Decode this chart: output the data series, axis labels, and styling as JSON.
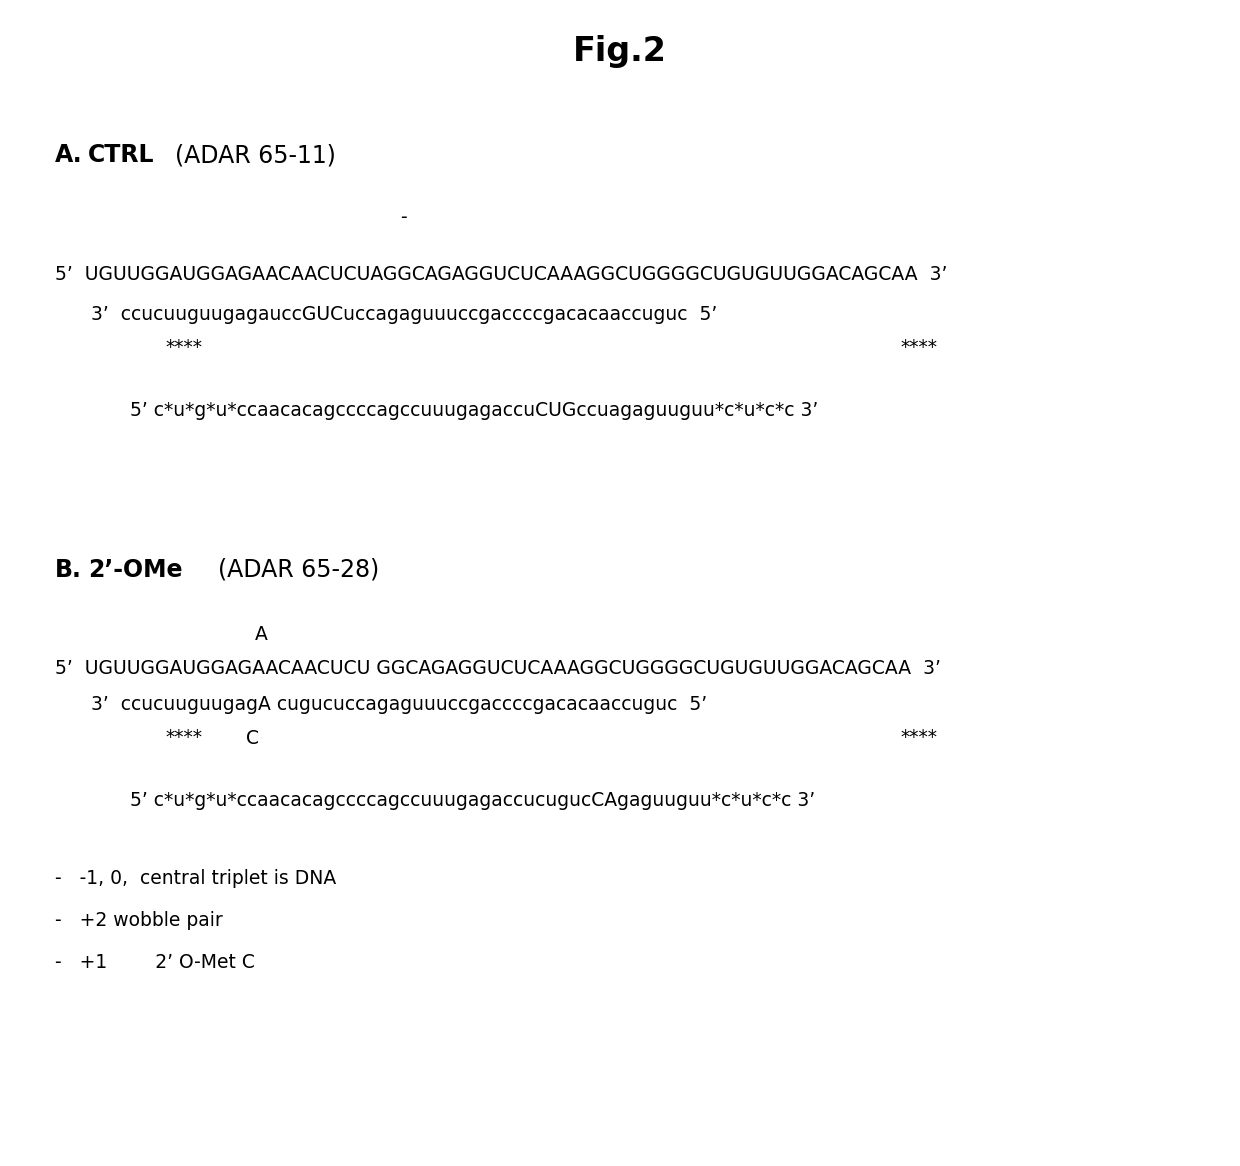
{
  "title": "Fig.2",
  "bg_color": "#ffffff",
  "section_A_label_bold": "A.",
  "section_A_bold": "  CTRL",
  "section_A_normal": " (ADAR 65-11)",
  "section_A_dash": "-",
  "section_A_line1": "5’  UGUUGGAUGGAGAACAACUCUAGGCAGAGGUCUCAAAGGCUGGGGCUGUGUUGGACAGCAA  3’",
  "section_A_line2": "   3’  ccucuuguugagauccGUCuccagaguuuccgaccccgacacaaccuguc  5’",
  "section_A_stars_left": "****",
  "section_A_stars_right": "****",
  "section_A_aso": "5’ c*u*g*u*ccaacacagccccagccuuugagaccuCUGccuagaguuguu*c*u*c*c 3’",
  "section_B_label_bold": "B.",
  "section_B_bold": "  2’-OMe",
  "section_B_normal": " (ADAR 65-28)",
  "section_B_A_label": "A",
  "section_B_line1_part1": "5’  UGUUGGAUGGAGAACAACUCU",
  "section_B_line1_part2": " GGCAGAGGUCUCAAAGGCUGGGGCUGUGUUGGACAGCAA  3’",
  "section_B_line2_part1": "   3’  ccucuuguugagA",
  "section_B_line2_part2": " cugucuccagaguuuccgaccccgacacaaccuguc  5’",
  "section_B_stars_left": "****",
  "section_B_C_label": "C",
  "section_B_stars_right": "****",
  "section_B_aso": "5’ c*u*g*u*ccaacacagccccagccuuugagaccucugucCAgaguuguu*c*u*c*c 3’",
  "note1": "-   -1, 0,  central triplet is DNA",
  "note2": "-   +2 wobble pair",
  "note3": "-   +1        2’ O-Met C",
  "seq_fontsize": 13.5,
  "header_fontsize": 17,
  "title_fontsize": 24
}
